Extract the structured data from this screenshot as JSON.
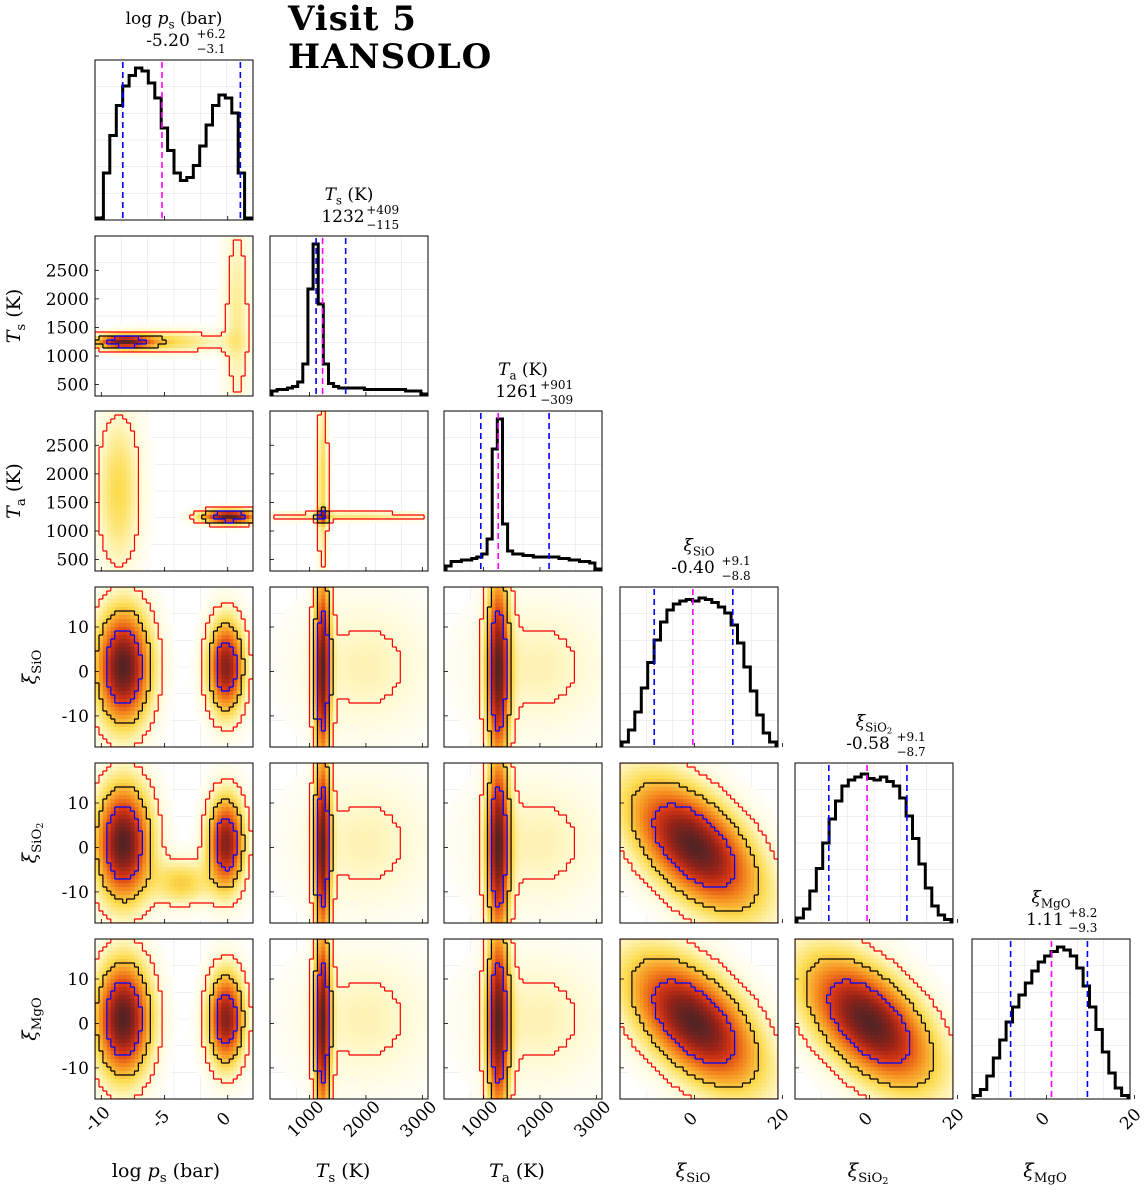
{
  "header": {
    "line1": "Visit 5",
    "line2": "HANSOLO"
  },
  "colors": {
    "hist_line": "#000000",
    "median_line": "#ff00ff",
    "quantile_line": "#0000ff",
    "contour_outer": "#ff0000",
    "contour_mid": "#000000",
    "contour_inner": "#0000ff"
  },
  "chart_data": {
    "type": "corner",
    "parameters": [
      {
        "id": "logps",
        "title_name": "log p_s (bar)",
        "title_value": "-5.20",
        "plus": "+6.2",
        "minus": "−3.1",
        "median": -5.2,
        "q_low": -8.3,
        "q_high": 1.0,
        "range": [
          -10.5,
          2
        ],
        "axis_label": "log p_s (bar)",
        "tick_values": [
          -10,
          -5,
          0
        ],
        "tick_labels": [
          "-10",
          "-5",
          "0"
        ],
        "ylabel": ""
      },
      {
        "id": "Ts",
        "title_name": "T_s (K)",
        "title_value": "1232",
        "plus": "+409",
        "minus": "−115",
        "median": 1232,
        "q_low": 1117,
        "q_high": 1641,
        "range": [
          300,
          3100
        ],
        "axis_label": "T_s (K)",
        "tick_values": [
          1000,
          2000,
          3000
        ],
        "tick_labels": [
          "1000",
          "2000",
          "3000"
        ],
        "ylabel": "T_s (K)",
        "ytick_values": [
          500,
          1000,
          1500,
          2000,
          2500
        ],
        "ytick_labels": [
          "500",
          "1000",
          "1500",
          "2000",
          "2500"
        ]
      },
      {
        "id": "Ta",
        "title_name": "T_a (K)",
        "title_value": "1261",
        "plus": "+901",
        "minus": "−309",
        "median": 1261,
        "q_low": 952,
        "q_high": 2162,
        "range": [
          300,
          3100
        ],
        "axis_label": "T_a (K)",
        "tick_values": [
          1000,
          2000,
          3000
        ],
        "tick_labels": [
          "1000",
          "2000",
          "3000"
        ],
        "ylabel": "T_a (K)",
        "ytick_values": [
          500,
          1000,
          1500,
          2000,
          2500
        ],
        "ytick_labels": [
          "500",
          "1000",
          "1500",
          "2000",
          "2500"
        ]
      },
      {
        "id": "SiO",
        "title_name": "ξ SiO",
        "title_value": "-0.40",
        "plus": "+9.1",
        "minus": "−8.8",
        "median": -0.4,
        "q_low": -9.2,
        "q_high": 8.7,
        "range": [
          -17,
          19
        ],
        "axis_label": "ξ SiO",
        "tick_values": [
          0,
          20
        ],
        "tick_labels": [
          "0",
          "20"
        ],
        "ylabel": "ξ SiO",
        "ytick_values": [
          -10,
          0,
          10
        ],
        "ytick_labels": [
          "-10",
          "0",
          "10"
        ]
      },
      {
        "id": "SiO2",
        "title_name": "ξ SiO2",
        "title_value": "-0.58",
        "plus": "+9.1",
        "minus": "−8.7",
        "median": -0.58,
        "q_low": -9.3,
        "q_high": 8.5,
        "range": [
          -17,
          19
        ],
        "axis_label": "ξ SiO2",
        "tick_values": [
          0,
          20
        ],
        "tick_labels": [
          "0",
          "20"
        ],
        "ylabel": "ξ SiO2",
        "ytick_values": [
          -10,
          0,
          10
        ],
        "ytick_labels": [
          "-10",
          "0",
          "10"
        ]
      },
      {
        "id": "MgO",
        "title_name": "ξ MgO",
        "title_value": "1.11",
        "plus": "+8.2",
        "minus": "−9.3",
        "median": 1.11,
        "q_low": -8.2,
        "q_high": 9.3,
        "range": [
          -17,
          19
        ],
        "axis_label": "ξ MgO",
        "tick_values": [
          0,
          20
        ],
        "tick_labels": [
          "0",
          "20"
        ],
        "ylabel": "ξ MgO",
        "ytick_values": [
          -10,
          0,
          10
        ],
        "ytick_labels": [
          "-10",
          "0",
          "10"
        ]
      }
    ],
    "histograms": {
      "logps": [
        0.0,
        0.3,
        0.55,
        0.75,
        0.88,
        0.95,
        1.0,
        0.98,
        0.9,
        0.8,
        0.6,
        0.45,
        0.3,
        0.25,
        0.27,
        0.35,
        0.48,
        0.62,
        0.75,
        0.82,
        0.8,
        0.7,
        0.3,
        0.0
      ],
      "Ts": [
        0.02,
        0.03,
        0.03,
        0.04,
        0.05,
        0.08,
        0.2,
        0.7,
        1.0,
        0.6,
        0.2,
        0.07,
        0.05,
        0.04,
        0.04,
        0.04,
        0.04,
        0.04,
        0.03,
        0.03,
        0.03,
        0.03,
        0.03,
        0.03,
        0.03,
        0.03,
        0.02,
        0.02,
        0.02,
        0.0
      ],
      "Ta": [
        0.02,
        0.05,
        0.05,
        0.06,
        0.06,
        0.07,
        0.08,
        0.1,
        0.2,
        0.8,
        1.0,
        0.3,
        0.12,
        0.1,
        0.1,
        0.09,
        0.09,
        0.08,
        0.08,
        0.08,
        0.08,
        0.08,
        0.07,
        0.07,
        0.06,
        0.06,
        0.05,
        0.05,
        0.04,
        0.0
      ],
      "SiO": [
        0.02,
        0.1,
        0.22,
        0.38,
        0.55,
        0.7,
        0.82,
        0.9,
        0.94,
        0.96,
        0.97,
        0.96,
        0.98,
        0.97,
        0.95,
        0.92,
        0.88,
        0.8,
        0.68,
        0.52,
        0.36,
        0.2,
        0.08,
        0.02
      ],
      "SiO2": [
        0.02,
        0.08,
        0.2,
        0.35,
        0.52,
        0.68,
        0.8,
        0.9,
        0.94,
        0.96,
        0.98,
        0.95,
        0.94,
        0.96,
        0.93,
        0.9,
        0.82,
        0.7,
        0.55,
        0.38,
        0.22,
        0.1,
        0.04,
        0.01
      ],
      "MgO": [
        0.01,
        0.05,
        0.14,
        0.26,
        0.38,
        0.5,
        0.6,
        0.68,
        0.76,
        0.84,
        0.9,
        0.94,
        0.97,
        1.0,
        0.98,
        0.94,
        0.86,
        0.74,
        0.6,
        0.45,
        0.3,
        0.16,
        0.06,
        0.01
      ]
    }
  }
}
